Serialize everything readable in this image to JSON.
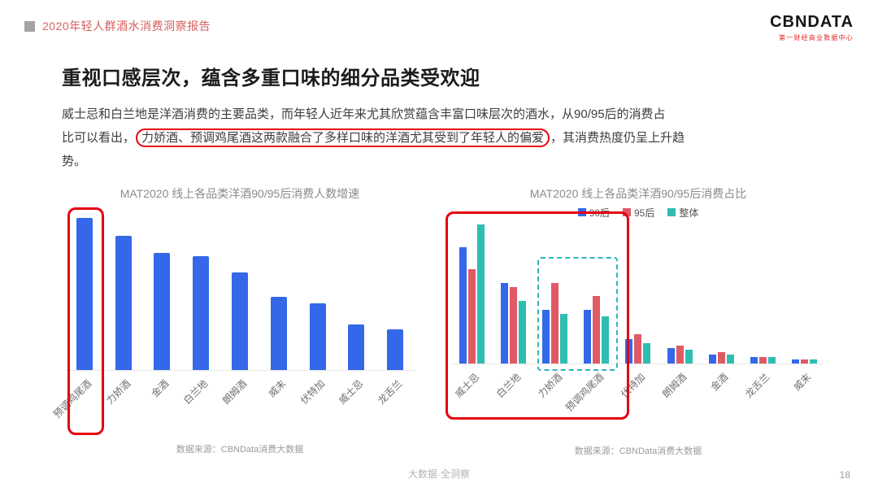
{
  "header": {
    "report_title": "2020年轻人群酒水消费洞察报告",
    "logo_text": "CBNDATA",
    "logo_subtitle": "第一财经商业数据中心"
  },
  "main": {
    "title": "重视口感层次，蕴含多重口味的细分品类受欢迎",
    "paragraph_line1": "威士忌和白兰地是洋酒消费的主要品类，而年轻人近年来尤其欣赏蕴含丰富口味层次的酒水，从90/95后的消费占",
    "paragraph_line2_prefix": "比可以看出，",
    "paragraph_highlight": "力娇酒、预调鸡尾酒这两款融合了多样口味的洋酒尤其受到了年轻人的偏爱",
    "paragraph_line2_suffix": "，其消费热度仍呈上升趋",
    "paragraph_line3": "势。"
  },
  "chart_data": [
    {
      "type": "bar",
      "title": "MAT2020 线上各品类洋酒90/95后消费人数增速",
      "categories": [
        "预调鸡尾酒",
        "力娇酒",
        "金酒",
        "白兰地",
        "朗姆酒",
        "威末",
        "伏特加",
        "威士忌",
        "龙舌兰"
      ],
      "values": [
        100,
        88,
        77,
        75,
        64,
        48,
        44,
        30,
        27
      ],
      "value_note": "无数值轴刻度，数值为按柱高估计的相对值（最高=100）",
      "color": "#3468e8",
      "xlabel": "",
      "ylabel": "",
      "grid": false,
      "source": "数据来源：CBNData消费大数据"
    },
    {
      "type": "bar",
      "title": "MAT2020 线上各品类洋酒90/95后消费占比",
      "categories": [
        "威士忌",
        "白兰地",
        "力娇酒",
        "预调鸡尾酒",
        "伏特加",
        "朗姆酒",
        "金酒",
        "龙舌兰",
        "威末"
      ],
      "series": [
        {
          "name": "90后",
          "color": "#3468e8",
          "values": [
            26,
            18,
            12,
            12,
            5.5,
            3.5,
            2,
            1.5,
            1
          ]
        },
        {
          "name": "95后",
          "color": "#e05a66",
          "values": [
            21,
            17,
            18,
            15,
            6.5,
            4,
            2.5,
            1.5,
            1
          ]
        },
        {
          "name": "整体",
          "color": "#2fbdb2",
          "values": [
            31,
            14,
            11,
            10.5,
            4.5,
            3,
            2,
            1.5,
            1
          ]
        }
      ],
      "value_note": "无数值轴刻度，数值为按柱高估计的占比（%）",
      "ylim": [
        0,
        35
      ],
      "legend_position": "top",
      "grid": false,
      "source": "数据来源：CBNData消费大数据"
    }
  ],
  "annotations": {
    "red_box_color": "#e60012",
    "dashed_box_color": "#2fb5c0",
    "text_highlight": "力娇酒、预调鸡尾酒这两款融合了多样口味的洋酒尤其受到了年轻人的偏爱",
    "left_chart_red_box": [
      "预调鸡尾酒"
    ],
    "right_chart_red_box": [
      "威士忌",
      "白兰地",
      "力娇酒",
      "预调鸡尾酒"
    ],
    "right_chart_dashed_box": [
      "力娇酒",
      "预调鸡尾酒"
    ]
  },
  "footer": {
    "caption": "大数据·全洞察",
    "page": "18"
  }
}
